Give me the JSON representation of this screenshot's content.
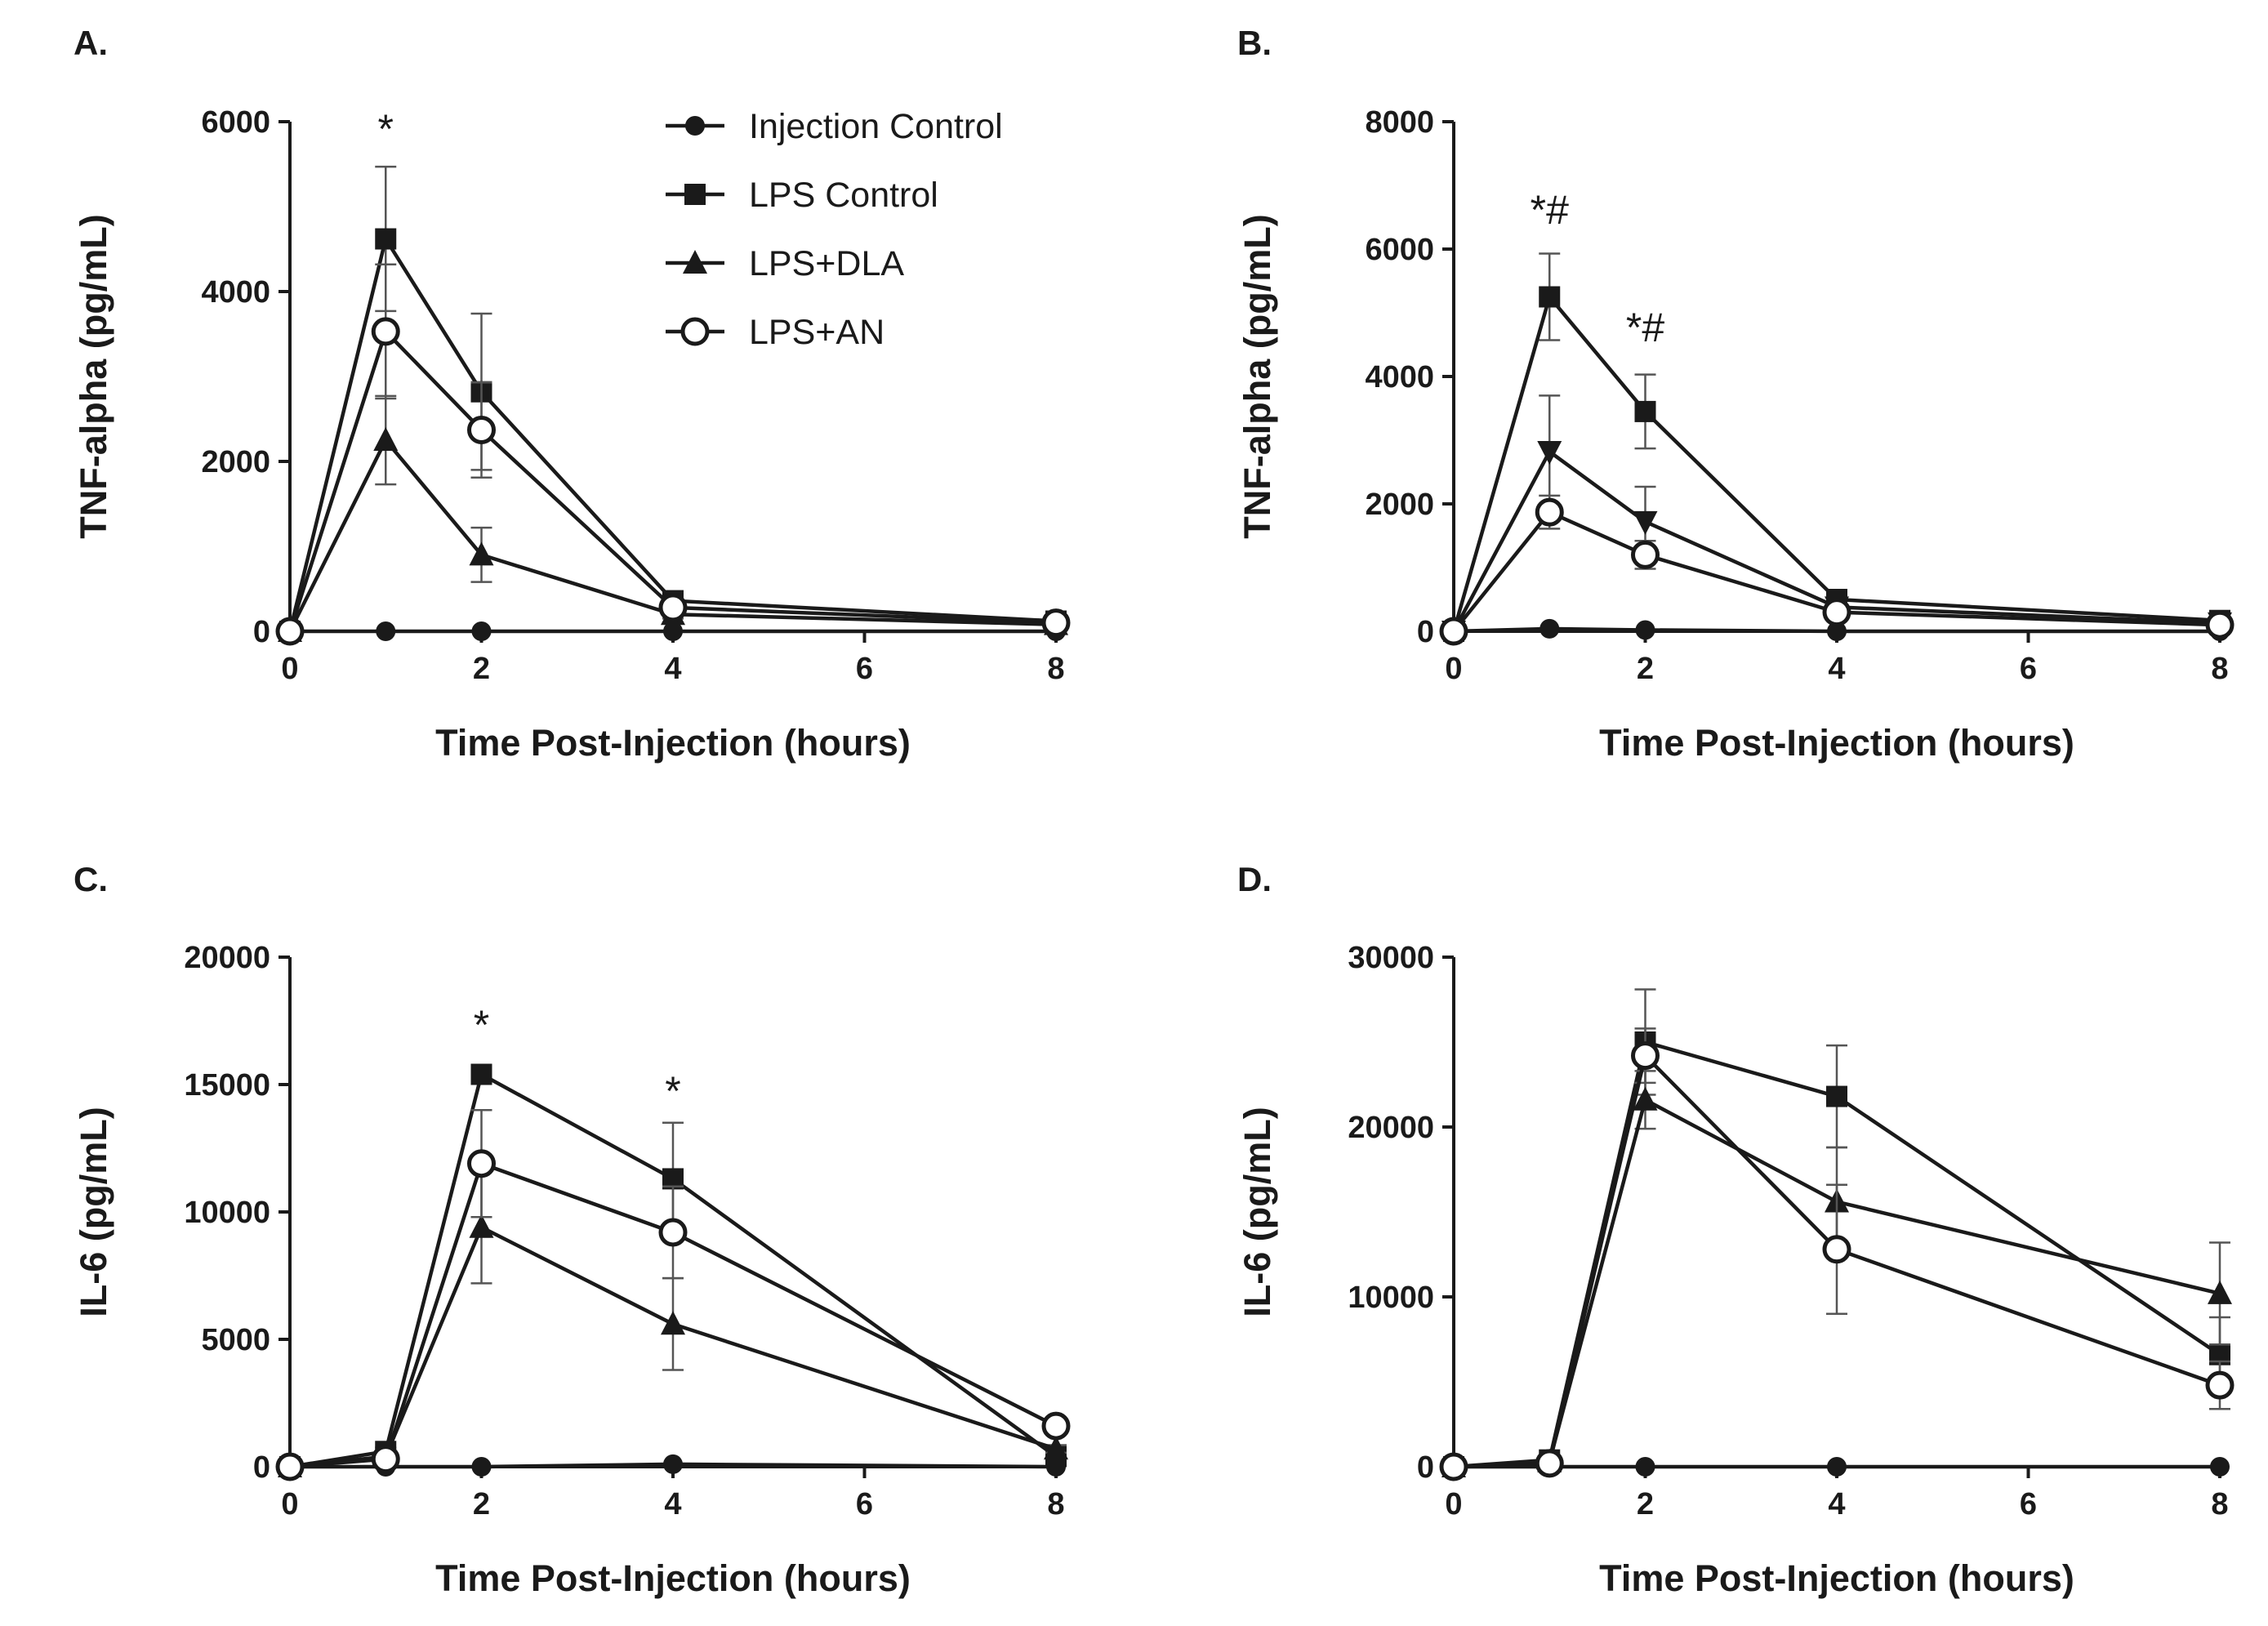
{
  "figure": {
    "x_axis_title": "Time Post-Injection (hours)",
    "ink_color": "#1a1a1a",
    "errorbar_color": "#555555",
    "legend": [
      {
        "name": "Injection Control",
        "marker": "filled-circle"
      },
      {
        "name": "LPS Control",
        "marker": "filled-square"
      },
      {
        "name": "LPS+DLA",
        "marker": "filled-triangle"
      },
      {
        "name": "LPS+AN",
        "marker": "open-circle"
      }
    ]
  },
  "chart_data": [
    {
      "panel": "A.",
      "type": "line",
      "title": "",
      "xlabel": "Time Post-Injection (hours)",
      "ylabel": "TNF-alpha (pg/mL)",
      "xlim": [
        0,
        8
      ],
      "ylim": [
        0,
        6000
      ],
      "xticks": [
        0,
        2,
        4,
        6,
        8
      ],
      "yticks": [
        0,
        2000,
        4000,
        6000
      ],
      "legend_position": "top-right",
      "series": [
        {
          "name": "Injection Control",
          "marker": "filled-circle",
          "x": [
            0,
            1,
            2,
            4,
            8
          ],
          "values": [
            0,
            0,
            0,
            0,
            0
          ],
          "errors": [
            0,
            0,
            0,
            0,
            0
          ]
        },
        {
          "name": "LPS Control",
          "marker": "filled-square",
          "x": [
            0,
            1,
            2,
            4,
            8
          ],
          "values": [
            0,
            4620,
            2820,
            360,
            120
          ],
          "errors": [
            0,
            850,
            920,
            60,
            30
          ]
        },
        {
          "name": "LPS+DLA",
          "marker": "filled-triangle",
          "x": [
            0,
            1,
            2,
            4,
            8
          ],
          "values": [
            0,
            2250,
            900,
            200,
            80
          ],
          "errors": [
            0,
            520,
            320,
            50,
            20
          ]
        },
        {
          "name": "LPS+AN",
          "marker": "open-circle",
          "x": [
            0,
            1,
            2,
            4,
            8
          ],
          "values": [
            0,
            3530,
            2370,
            280,
            100
          ],
          "errors": [
            0,
            790,
            560,
            60,
            25
          ]
        }
      ],
      "annotations": [
        {
          "text": "*",
          "x": 1,
          "y": 5750
        }
      ]
    },
    {
      "panel": "B.",
      "type": "line",
      "title": "",
      "xlabel": "Time Post-Injection (hours)",
      "ylabel": "TNF-alpha (pg/mL)",
      "xlim": [
        0,
        8
      ],
      "ylim": [
        0,
        8000
      ],
      "xticks": [
        0,
        2,
        4,
        6,
        8
      ],
      "yticks": [
        0,
        2000,
        4000,
        6000,
        8000
      ],
      "legend_position": "none",
      "series": [
        {
          "name": "Injection Control",
          "marker": "filled-circle",
          "x": [
            0,
            1,
            2,
            4,
            8
          ],
          "values": [
            0,
            40,
            20,
            0,
            0
          ],
          "errors": [
            0,
            0,
            0,
            0,
            0
          ]
        },
        {
          "name": "LPS Control",
          "marker": "filled-square",
          "x": [
            0,
            1,
            2,
            4,
            8
          ],
          "values": [
            0,
            5250,
            3450,
            500,
            170
          ],
          "errors": [
            0,
            680,
            580,
            80,
            40
          ]
        },
        {
          "name": "LPS+DLA",
          "marker": "filled-triangle-down",
          "x": [
            0,
            1,
            2,
            4,
            8
          ],
          "values": [
            0,
            2820,
            1720,
            380,
            130
          ],
          "errors": [
            0,
            880,
            550,
            60,
            30
          ]
        },
        {
          "name": "LPS+AN",
          "marker": "open-circle",
          "x": [
            0,
            1,
            2,
            4,
            8
          ],
          "values": [
            0,
            1870,
            1200,
            300,
            100
          ],
          "errors": [
            0,
            260,
            220,
            50,
            25
          ]
        }
      ],
      "annotations": [
        {
          "text": "*#",
          "x": 1,
          "y": 6400
        },
        {
          "text": "*#",
          "x": 2,
          "y": 4550
        }
      ]
    },
    {
      "panel": "C.",
      "type": "line",
      "title": "",
      "xlabel": "Time Post-Injection (hours)",
      "ylabel": "IL-6 (pg/mL)",
      "xlim": [
        0,
        8
      ],
      "ylim": [
        0,
        20000
      ],
      "xticks": [
        0,
        2,
        4,
        6,
        8
      ],
      "yticks": [
        0,
        5000,
        10000,
        15000,
        20000
      ],
      "legend_position": "none",
      "series": [
        {
          "name": "Injection Control",
          "marker": "filled-circle",
          "x": [
            0,
            1,
            2,
            4,
            8
          ],
          "values": [
            0,
            0,
            0,
            100,
            0
          ],
          "errors": [
            0,
            0,
            0,
            0,
            0
          ]
        },
        {
          "name": "LPS Control",
          "marker": "filled-square",
          "x": [
            0,
            1,
            2,
            4,
            8
          ],
          "values": [
            0,
            600,
            15400,
            11300,
            400
          ],
          "errors": [
            0,
            150,
            0,
            2200,
            100
          ]
        },
        {
          "name": "LPS+DLA",
          "marker": "filled-triangle",
          "x": [
            0,
            1,
            2,
            4,
            8
          ],
          "values": [
            0,
            400,
            9400,
            5600,
            700
          ],
          "errors": [
            0,
            100,
            2200,
            1800,
            150
          ]
        },
        {
          "name": "LPS+AN",
          "marker": "open-circle",
          "x": [
            0,
            1,
            2,
            4,
            8
          ],
          "values": [
            0,
            300,
            11900,
            9200,
            1600
          ],
          "errors": [
            0,
            100,
            2100,
            1800,
            300
          ]
        }
      ],
      "annotations": [
        {
          "text": "*",
          "x": 2,
          "y": 16800
        },
        {
          "text": "*",
          "x": 4,
          "y": 14200
        }
      ]
    },
    {
      "panel": "D.",
      "type": "line",
      "title": "",
      "xlabel": "Time Post-Injection (hours)",
      "ylabel": "IL-6 (pg/mL)",
      "xlim": [
        0,
        8
      ],
      "ylim": [
        0,
        30000
      ],
      "xticks": [
        0,
        2,
        4,
        6,
        8
      ],
      "yticks": [
        0,
        10000,
        20000,
        30000
      ],
      "legend_position": "none",
      "series": [
        {
          "name": "Injection Control",
          "marker": "filled-circle",
          "x": [
            0,
            1,
            2,
            4,
            8
          ],
          "values": [
            0,
            0,
            0,
            0,
            0
          ],
          "errors": [
            0,
            0,
            0,
            0,
            0
          ]
        },
        {
          "name": "LPS Control",
          "marker": "filled-square",
          "x": [
            0,
            1,
            2,
            4,
            8
          ],
          "values": [
            0,
            400,
            25000,
            21800,
            6600
          ],
          "errors": [
            0,
            100,
            3100,
            3000,
            2200
          ]
        },
        {
          "name": "LPS+DLA",
          "marker": "filled-triangle",
          "x": [
            0,
            1,
            2,
            4,
            8
          ],
          "values": [
            0,
            300,
            21600,
            15600,
            10200
          ],
          "errors": [
            0,
            100,
            1700,
            3200,
            3000
          ]
        },
        {
          "name": "LPS+AN",
          "marker": "open-circle",
          "x": [
            0,
            1,
            2,
            4,
            8
          ],
          "values": [
            0,
            200,
            24200,
            12800,
            4800
          ],
          "errors": [
            0,
            100,
            1600,
            3800,
            1400
          ]
        }
      ],
      "annotations": []
    }
  ]
}
